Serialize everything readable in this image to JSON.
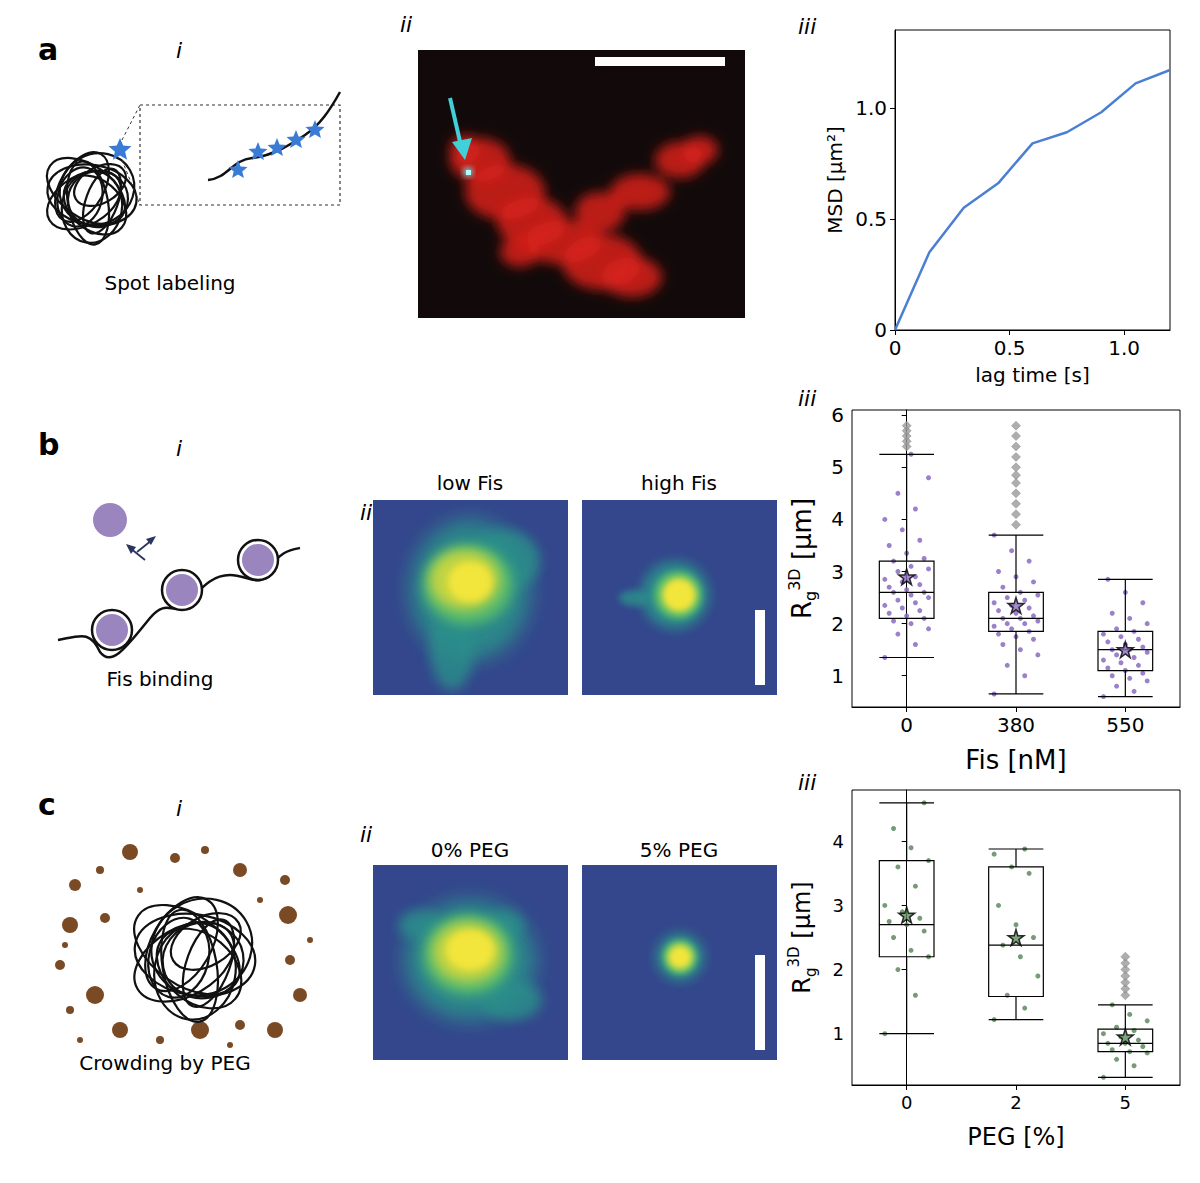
{
  "figure": {
    "panels": [
      {
        "letter": "a",
        "parts": [
          "i",
          "ii",
          "iii"
        ],
        "caption": "Spot labeling"
      },
      {
        "letter": "b",
        "parts": [
          "i",
          "ii",
          "iii"
        ],
        "caption": "Fis binding",
        "image_titles": [
          "low Fis",
          "high Fis"
        ]
      },
      {
        "letter": "c",
        "parts": [
          "i",
          "ii",
          "iii"
        ],
        "caption": "Crowding by PEG",
        "image_titles": [
          "0% PEG",
          "5% PEG"
        ]
      }
    ]
  },
  "chart_data": [
    {
      "type": "line",
      "xlabel": "lag time [s]",
      "ylabel": "MSD [μm²]",
      "x": [
        0,
        0.15,
        0.3,
        0.45,
        0.6,
        0.75,
        0.9,
        1.05,
        1.2
      ],
      "values": [
        0,
        0.35,
        0.55,
        0.66,
        0.84,
        0.89,
        0.98,
        1.11,
        1.17
      ],
      "color": "#4a7fd4",
      "xlim": [
        0,
        1.2
      ],
      "xticks": [
        0,
        0.5,
        {
          "value": 1,
          "label": "1.0"
        }
      ],
      "ylim": [
        0,
        1.35
      ],
      "yticks": [
        0,
        0.5,
        {
          "value": 1,
          "label": "1.0"
        }
      ],
      "grid": false
    },
    {
      "type": "boxplot",
      "xlabel": "Fis [nM]",
      "ylabel": {
        "text": "R",
        "subscript": "g",
        "superscript": "3D",
        "suffix": " [μm]"
      },
      "categories": [
        "0",
        "380",
        "550"
      ],
      "color": "#8a6bbf",
      "ylim": [
        0.4,
        6.1
      ],
      "yticks": [
        1,
        2,
        3,
        4,
        5,
        6
      ],
      "grid": false,
      "boxes": [
        {
          "whisker_low": 1.35,
          "q1": 2.1,
          "median": 2.6,
          "q3": 3.2,
          "whisker_high": 5.25,
          "mean": 2.9,
          "points": [
            1.35,
            1.6,
            1.8,
            1.9,
            2.0,
            2.05,
            2.1,
            2.15,
            2.2,
            2.25,
            2.3,
            2.35,
            2.4,
            2.45,
            2.5,
            2.55,
            2.6,
            2.6,
            2.65,
            2.7,
            2.75,
            2.8,
            2.85,
            2.9,
            3.0,
            3.05,
            3.1,
            3.2,
            3.25,
            3.35,
            3.5,
            3.6,
            3.8,
            4.0,
            4.2,
            4.5,
            4.8,
            5.25
          ],
          "outliers": [
            5.4,
            5.5,
            5.6,
            5.7,
            5.8
          ]
        },
        {
          "whisker_low": 0.65,
          "q1": 1.85,
          "median": 2.1,
          "q3": 2.6,
          "whisker_high": 3.7,
          "mean": 2.35,
          "points": [
            0.65,
            1.0,
            1.2,
            1.4,
            1.5,
            1.6,
            1.7,
            1.75,
            1.8,
            1.85,
            1.9,
            1.95,
            2.0,
            2.0,
            2.05,
            2.1,
            2.1,
            2.15,
            2.2,
            2.25,
            2.3,
            2.35,
            2.4,
            2.45,
            2.5,
            2.55,
            2.6,
            2.7,
            2.8,
            2.9,
            3.0,
            3.2,
            3.4,
            3.7
          ],
          "outliers": [
            3.9,
            4.1,
            4.3,
            4.5,
            4.7,
            4.85,
            5.0,
            5.2,
            5.4,
            5.6,
            5.8
          ]
        },
        {
          "whisker_low": 0.6,
          "q1": 1.1,
          "median": 1.5,
          "q3": 1.85,
          "whisker_high": 2.85,
          "mean": 1.5,
          "points": [
            0.6,
            0.7,
            0.8,
            0.9,
            0.95,
            1.0,
            1.05,
            1.1,
            1.15,
            1.2,
            1.25,
            1.3,
            1.35,
            1.4,
            1.45,
            1.5,
            1.5,
            1.55,
            1.6,
            1.65,
            1.7,
            1.75,
            1.8,
            1.85,
            1.9,
            2.0,
            2.1,
            2.2,
            2.4,
            2.6,
            2.85
          ]
        }
      ]
    },
    {
      "type": "boxplot",
      "xlabel": "PEG [%]",
      "ylabel": {
        "text": "R",
        "subscript": "g",
        "superscript": "3D",
        "suffix": " [μm]"
      },
      "categories": [
        "0",
        "2",
        "5"
      ],
      "color": "#5e8a5e",
      "ylim": [
        0.2,
        4.8
      ],
      "yticks": [
        1,
        2,
        3,
        4
      ],
      "grid": false,
      "boxes": [
        {
          "whisker_low": 1.0,
          "q1": 2.2,
          "median": 2.7,
          "q3": 3.7,
          "whisker_high": 4.6,
          "mean": 2.85,
          "points": [
            1.0,
            1.6,
            2.0,
            2.2,
            2.3,
            2.5,
            2.6,
            2.7,
            2.75,
            2.8,
            2.9,
            3.0,
            3.3,
            3.6,
            3.7,
            3.9,
            4.2,
            4.6
          ]
        },
        {
          "whisker_low": 1.22,
          "q1": 1.58,
          "median": 2.38,
          "q3": 3.6,
          "whisker_high": 3.88,
          "mean": 2.5,
          "points": [
            1.22,
            1.4,
            1.6,
            1.9,
            2.2,
            2.38,
            2.5,
            2.7,
            3.0,
            3.5,
            3.6,
            3.8,
            3.88
          ]
        },
        {
          "whisker_low": 0.32,
          "q1": 0.72,
          "median": 0.85,
          "q3": 1.07,
          "whisker_high": 1.45,
          "mean": 0.95,
          "points": [
            0.32,
            0.5,
            0.6,
            0.7,
            0.72,
            0.75,
            0.8,
            0.85,
            0.85,
            0.9,
            0.95,
            1.0,
            1.05,
            1.1,
            1.2,
            1.3,
            1.45
          ],
          "outliers": [
            1.6,
            1.7,
            1.8,
            1.9,
            2.0,
            2.1,
            2.2
          ]
        }
      ]
    }
  ]
}
